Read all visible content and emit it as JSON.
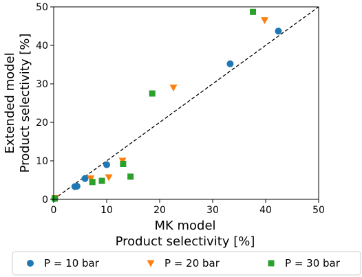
{
  "chart_data": {
    "type": "scatter",
    "title": "",
    "xlabel_lines": [
      "MK model",
      "Product selectivity [%]"
    ],
    "ylabel_lines": [
      "Extended model",
      "Product selectivity [%]"
    ],
    "xlim": [
      0,
      50
    ],
    "ylim": [
      0,
      50
    ],
    "xticks": [
      0,
      10,
      20,
      30,
      40,
      50
    ],
    "yticks": [
      0,
      10,
      20,
      30,
      40,
      50
    ],
    "grid": false,
    "legend_position": "bottom-outside",
    "reference_line": {
      "style": "dashed",
      "color": "#000000",
      "from": [
        0,
        0
      ],
      "to": [
        50,
        50
      ]
    },
    "series": [
      {
        "name": "P = 10 bar",
        "marker": "circle",
        "color": "#1f77b4",
        "points": [
          [
            0.2,
            0.2
          ],
          [
            4.0,
            3.3
          ],
          [
            4.4,
            3.4
          ],
          [
            5.9,
            5.4
          ],
          [
            10.0,
            9.0
          ],
          [
            33.3,
            35.2
          ],
          [
            42.4,
            43.7
          ]
        ]
      },
      {
        "name": "P = 20 bar",
        "marker": "triangle-down",
        "color": "#ff7f0e",
        "points": [
          [
            0.3,
            0.3
          ],
          [
            7.0,
            5.4
          ],
          [
            10.4,
            5.7
          ],
          [
            13.0,
            10.0
          ],
          [
            22.6,
            29.0
          ],
          [
            39.8,
            46.5
          ]
        ]
      },
      {
        "name": "P = 30 bar",
        "marker": "square",
        "color": "#2ca02c",
        "points": [
          [
            0.2,
            0.2
          ],
          [
            7.3,
            4.5
          ],
          [
            9.1,
            4.8
          ],
          [
            13.1,
            9.2
          ],
          [
            14.5,
            5.9
          ],
          [
            18.6,
            27.5
          ],
          [
            37.6,
            48.7
          ]
        ]
      }
    ]
  }
}
